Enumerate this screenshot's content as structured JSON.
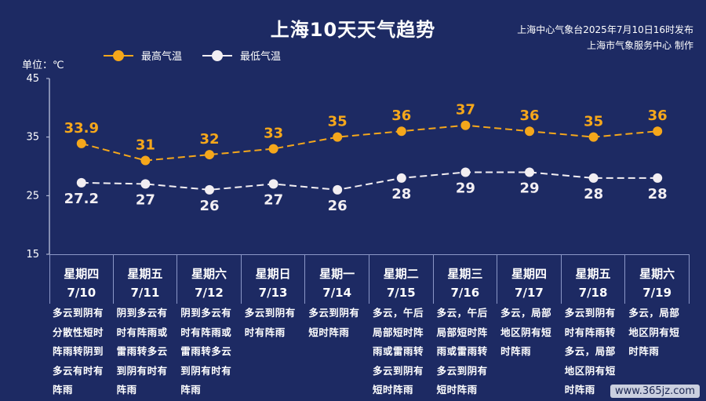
{
  "header": {
    "title": "上海10天天气趋势",
    "issuer_line1": "上海中心气象台2025年7月10日16时发布",
    "issuer_line2": "上海市气象服务中心 制作",
    "unit": "单位：℃"
  },
  "colors": {
    "background": "#1d2a63",
    "high": "#f5a71b",
    "low": "#f2eef2"
  },
  "chart_data": {
    "type": "line",
    "title": "上海10天天气趋势",
    "ylabel": "单位：℃",
    "ylim": [
      15,
      45
    ],
    "yticks": [
      "15",
      "25",
      "35",
      "45"
    ],
    "legend_position": "top-left",
    "categories": [
      "7/10",
      "7/11",
      "7/12",
      "7/13",
      "7/14",
      "7/15",
      "7/16",
      "7/17",
      "7/18",
      "7/19"
    ],
    "series": [
      {
        "name": "最高气温",
        "values": [
          33.9,
          31,
          32,
          33,
          35,
          36,
          37,
          36,
          35,
          36
        ],
        "labels": [
          "33.9",
          "31",
          "32",
          "33",
          "35",
          "36",
          "37",
          "36",
          "35",
          "36"
        ]
      },
      {
        "name": "最低气温",
        "values": [
          27.2,
          27,
          26,
          27,
          26,
          28,
          29,
          29,
          28,
          28
        ],
        "labels": [
          "27.2",
          "27",
          "26",
          "27",
          "26",
          "28",
          "29",
          "29",
          "28",
          "28"
        ]
      }
    ]
  },
  "days": [
    {
      "weekday": "星期四",
      "date": "7/10",
      "desc": "多云到阴有分散性短时阵雨转阴到多云有时有阵雨"
    },
    {
      "weekday": "星期五",
      "date": "7/11",
      "desc": "阴到多云有时有阵雨或雷雨转多云到阴有时有阵雨"
    },
    {
      "weekday": "星期六",
      "date": "7/12",
      "desc": "阴到多云有时有阵雨或雷雨转多云到阴有时有阵雨"
    },
    {
      "weekday": "星期日",
      "date": "7/13",
      "desc": "多云到阴有时有阵雨"
    },
    {
      "weekday": "星期一",
      "date": "7/14",
      "desc": "多云到阴有短时阵雨"
    },
    {
      "weekday": "星期二",
      "date": "7/15",
      "desc": "多云，午后局部短时阵雨或雷雨转多云到阴有短时阵雨"
    },
    {
      "weekday": "星期三",
      "date": "7/16",
      "desc": "多云，午后局部短时阵雨或雷雨转多云到阴有短时阵雨"
    },
    {
      "weekday": "星期四",
      "date": "7/17",
      "desc": "多云，局部地区阴有短时阵雨"
    },
    {
      "weekday": "星期五",
      "date": "7/18",
      "desc": "多云到阴有时有阵雨转多云，局部地区阴有短时阵雨"
    },
    {
      "weekday": "星期六",
      "date": "7/19",
      "desc": "多云，局部地区阴有短时阵雨"
    }
  ],
  "watermark": "www.365jz.com"
}
